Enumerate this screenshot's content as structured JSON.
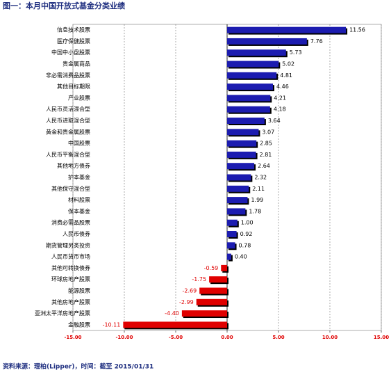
{
  "chart_data": {
    "type": "bar",
    "orientation": "horizontal",
    "title": "图一：本月中国开放式基金分类业绩",
    "source": "资料来源：理柏(Lipper)，时间：截至 2015/01/31",
    "categories": [
      "信息技术股票",
      "医疗保健股票",
      "中国中小盘股票",
      "贵金属商品",
      "非必需消费品股票",
      "其他目标期限",
      "产业股票",
      "人民币灵活混合型",
      "人民币进取混合型",
      "黄金和贵金属股票",
      "中国股票",
      "人民币平衡混合型",
      "其他地方债券",
      "护本基金",
      "其他保守混合型",
      "材料股票",
      "保本基金",
      "消费必需品股票",
      "人民币债券",
      "期货管理另类投资",
      "人民币货币市场",
      "其他可转换债券",
      "环球房地产股票",
      "能源股票",
      "其他房地产股票",
      "亚洲太平洋房地产股票",
      "金融股票"
    ],
    "values": [
      11.56,
      7.76,
      5.73,
      5.02,
      4.81,
      4.46,
      4.21,
      4.18,
      3.64,
      3.07,
      2.85,
      2.81,
      2.64,
      2.32,
      2.11,
      1.99,
      1.78,
      1.0,
      0.92,
      0.78,
      0.4,
      -0.59,
      -1.75,
      -2.69,
      -2.99,
      -4.4,
      -10.11
    ],
    "value_labels": [
      "11.56",
      "7.76",
      "5.73",
      "5.02",
      "4.81",
      "4.46",
      "4.21",
      "4.18",
      "3.64",
      "3.07",
      "2.85",
      "2.81",
      "2.64",
      "2.32",
      "2.11",
      "1.99",
      "1.78",
      "1.00",
      "0.92",
      "0.78",
      "0.40",
      "-0.59",
      "-1.75",
      "-2.69",
      "-2.99",
      "-4.40",
      "-10.11"
    ],
    "positive_color": "#1c1cb0",
    "negative_color": "#e00000",
    "xlim": [
      -15,
      15
    ],
    "xticks": [
      {
        "value": -15,
        "label": "-15.00"
      },
      {
        "value": -10,
        "label": "-10.00"
      },
      {
        "value": -5,
        "label": "-5.00"
      },
      {
        "value": 0,
        "label": "0.00"
      },
      {
        "value": 5,
        "label": "5.00"
      },
      {
        "value": 10,
        "label": "10.00"
      },
      {
        "value": 15,
        "label": "15.00"
      }
    ],
    "grid": true
  }
}
